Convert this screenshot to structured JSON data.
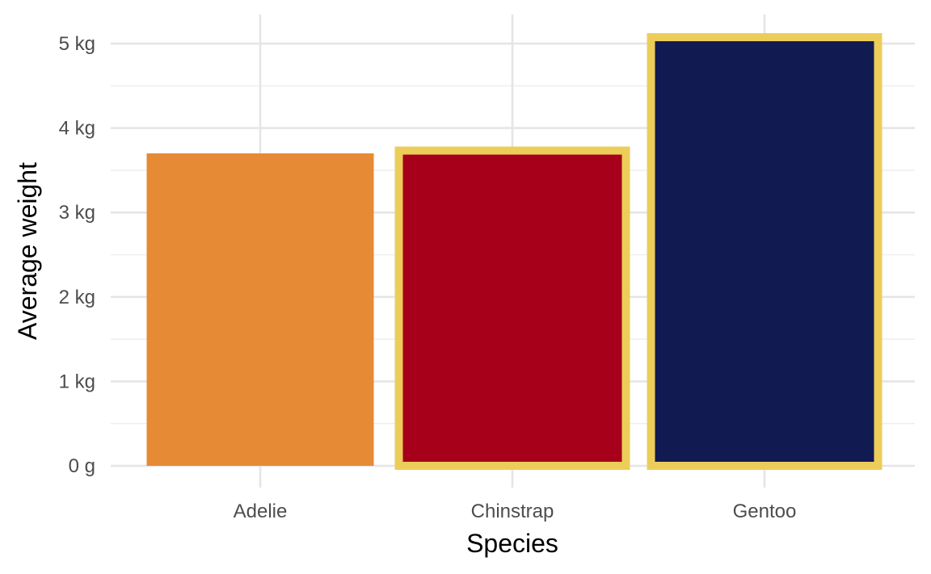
{
  "chart_data": {
    "type": "bar",
    "xlabel": "Species",
    "ylabel": "Average weight",
    "categories": [
      "Adelie",
      "Chinstrap",
      "Gentoo"
    ],
    "values": [
      3700,
      3733,
      5076
    ],
    "unit": "g",
    "ylim": [
      0,
      5200
    ],
    "y_ticks": [
      0,
      1000,
      2000,
      3000,
      4000,
      5000
    ],
    "y_tick_labels": [
      "0 g",
      "1 kg",
      "2 kg",
      "3 kg",
      "4 kg",
      "5 kg"
    ],
    "grid": true,
    "legend": "none",
    "fill_colors": [
      "#E68A35",
      "#A6001A",
      "#121A52"
    ],
    "highlight_outline": [
      false,
      true,
      true
    ],
    "outline_color": "#EDCD59"
  }
}
